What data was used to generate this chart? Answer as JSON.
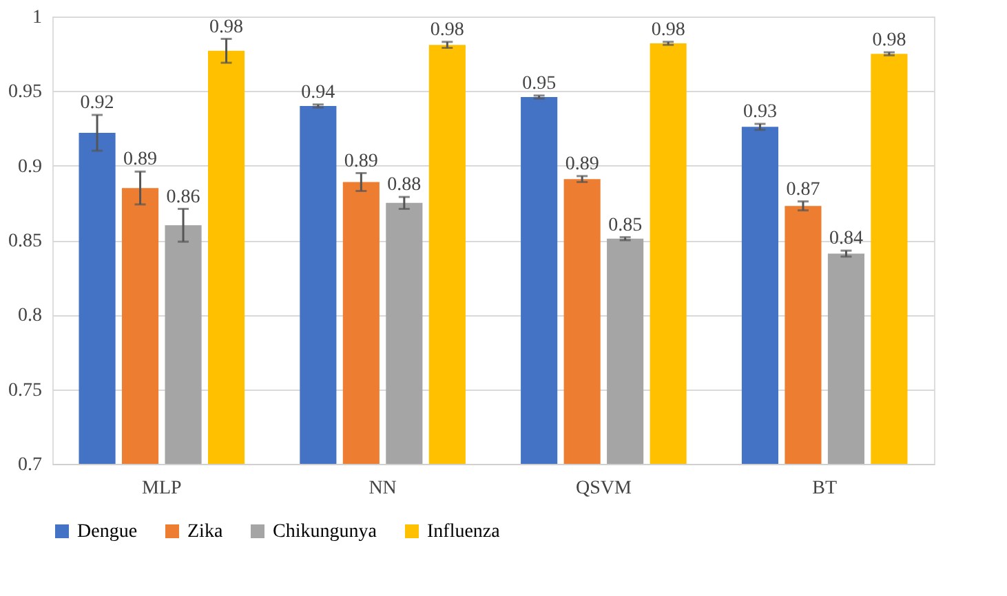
{
  "chart_data": {
    "type": "bar",
    "categories": [
      "MLP",
      "NN",
      "QSVM",
      "BT"
    ],
    "series": [
      {
        "name": "Dengue",
        "color": "#4472c4",
        "values": [
          0.922,
          0.94,
          0.946,
          0.926
        ],
        "errors": [
          0.012,
          0.001,
          0.001,
          0.002
        ],
        "value_labels": [
          "0.92",
          "0.94",
          "0.95",
          "0.93"
        ]
      },
      {
        "name": "Zika",
        "color": "#ed7d31",
        "values": [
          0.885,
          0.889,
          0.891,
          0.873
        ],
        "errors": [
          0.011,
          0.006,
          0.002,
          0.003
        ],
        "value_labels": [
          "0.89",
          "0.89",
          "0.89",
          "0.87"
        ]
      },
      {
        "name": "Chikungunya",
        "color": "#a5a5a5",
        "values": [
          0.86,
          0.875,
          0.851,
          0.841
        ],
        "errors": [
          0.011,
          0.004,
          0.001,
          0.002
        ],
        "value_labels": [
          "0.86",
          "0.88",
          "0.85",
          "0.84"
        ]
      },
      {
        "name": "Influenza",
        "color": "#ffc000",
        "values": [
          0.977,
          0.981,
          0.982,
          0.975
        ],
        "errors": [
          0.008,
          0.002,
          0.001,
          0.001
        ],
        "value_labels": [
          "0.98",
          "0.98",
          "0.98",
          "0.98"
        ]
      }
    ],
    "ylim": [
      0.7,
      1
    ],
    "yticks": [
      0.7,
      0.75,
      0.8,
      0.85,
      0.9,
      0.95,
      1
    ],
    "grid": "y",
    "legend": "bottom"
  }
}
